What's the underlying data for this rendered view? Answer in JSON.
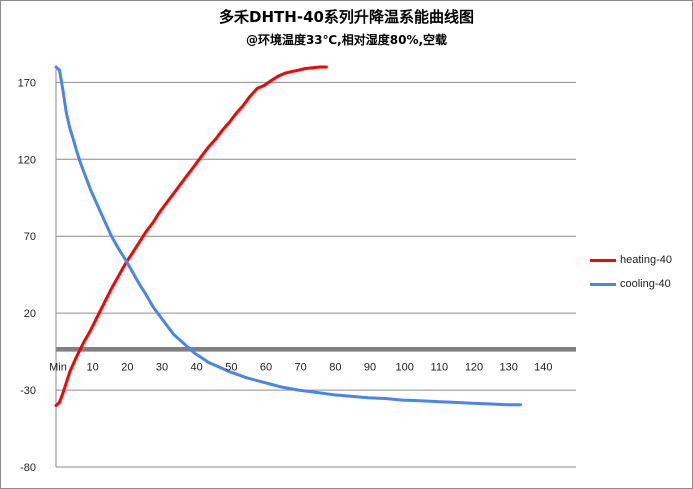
{
  "chart_data": {
    "type": "line",
    "title": "多禾DHTH-40系列升降温系能曲线图",
    "subtitle": "@环境温度33℃,相对湿度80%,空载",
    "xlabel": "",
    "ylabel": "",
    "x_ticks": [
      "Min",
      "10",
      "20",
      "30",
      "40",
      "50",
      "60",
      "70",
      "80",
      "90",
      "100",
      "110",
      "120",
      "130",
      "140"
    ],
    "xlim": [
      0,
      150
    ],
    "y_ticks": [
      170,
      120,
      70,
      20,
      -30,
      -80
    ],
    "ylim": [
      -80,
      180
    ],
    "reference_band": {
      "y_from": -2,
      "y_to": -5,
      "color": "#808080"
    },
    "grid": true,
    "legend_position": "right",
    "series": [
      {
        "name": "heating-40",
        "color": "#ff0000",
        "points": [
          [
            0,
            -40
          ],
          [
            1,
            -38
          ],
          [
            2,
            -32
          ],
          [
            3,
            -25
          ],
          [
            4,
            -18
          ],
          [
            5,
            -13
          ],
          [
            6,
            -8
          ],
          [
            8,
            1
          ],
          [
            10,
            9
          ],
          [
            12,
            18
          ],
          [
            14,
            27
          ],
          [
            16,
            36
          ],
          [
            18,
            44
          ],
          [
            20,
            52
          ],
          [
            22,
            59
          ],
          [
            24,
            66
          ],
          [
            26,
            73
          ],
          [
            28,
            79
          ],
          [
            30,
            86
          ],
          [
            32,
            92
          ],
          [
            34,
            98
          ],
          [
            36,
            104
          ],
          [
            38,
            110
          ],
          [
            40,
            116
          ],
          [
            42,
            122
          ],
          [
            44,
            128
          ],
          [
            46,
            133
          ],
          [
            48,
            139
          ],
          [
            50,
            144
          ],
          [
            52,
            150
          ],
          [
            54,
            155
          ],
          [
            56,
            161
          ],
          [
            58,
            166
          ],
          [
            60,
            168
          ],
          [
            62,
            171
          ],
          [
            64,
            174
          ],
          [
            66,
            176
          ],
          [
            68,
            177
          ],
          [
            70,
            178
          ],
          [
            72,
            179
          ],
          [
            74,
            179.5
          ],
          [
            76,
            180
          ],
          [
            78,
            180
          ]
        ]
      },
      {
        "name": "cooling-40",
        "color": "#4a86e8",
        "points": [
          [
            0,
            180
          ],
          [
            1,
            178
          ],
          [
            2,
            165
          ],
          [
            3,
            150
          ],
          [
            4,
            140
          ],
          [
            5,
            133
          ],
          [
            6,
            125
          ],
          [
            7,
            118
          ],
          [
            8,
            112
          ],
          [
            9,
            106
          ],
          [
            10,
            100
          ],
          [
            12,
            90
          ],
          [
            14,
            80
          ],
          [
            16,
            70
          ],
          [
            18,
            62
          ],
          [
            20,
            55
          ],
          [
            22,
            47
          ],
          [
            24,
            39
          ],
          [
            26,
            32
          ],
          [
            28,
            24
          ],
          [
            30,
            18
          ],
          [
            32,
            12
          ],
          [
            34,
            6
          ],
          [
            36,
            2
          ],
          [
            38,
            -2
          ],
          [
            40,
            -6
          ],
          [
            42,
            -9
          ],
          [
            44,
            -12
          ],
          [
            46,
            -14
          ],
          [
            48,
            -16
          ],
          [
            50,
            -18
          ],
          [
            55,
            -22
          ],
          [
            60,
            -25
          ],
          [
            65,
            -28
          ],
          [
            70,
            -30
          ],
          [
            75,
            -31.5
          ],
          [
            80,
            -33
          ],
          [
            85,
            -34
          ],
          [
            90,
            -35
          ],
          [
            95,
            -35.5
          ],
          [
            100,
            -36.5
          ],
          [
            105,
            -37
          ],
          [
            110,
            -37.5
          ],
          [
            115,
            -38
          ],
          [
            120,
            -38.5
          ],
          [
            125,
            -39
          ],
          [
            130,
            -39.5
          ],
          [
            134,
            -39.5
          ]
        ]
      }
    ]
  }
}
